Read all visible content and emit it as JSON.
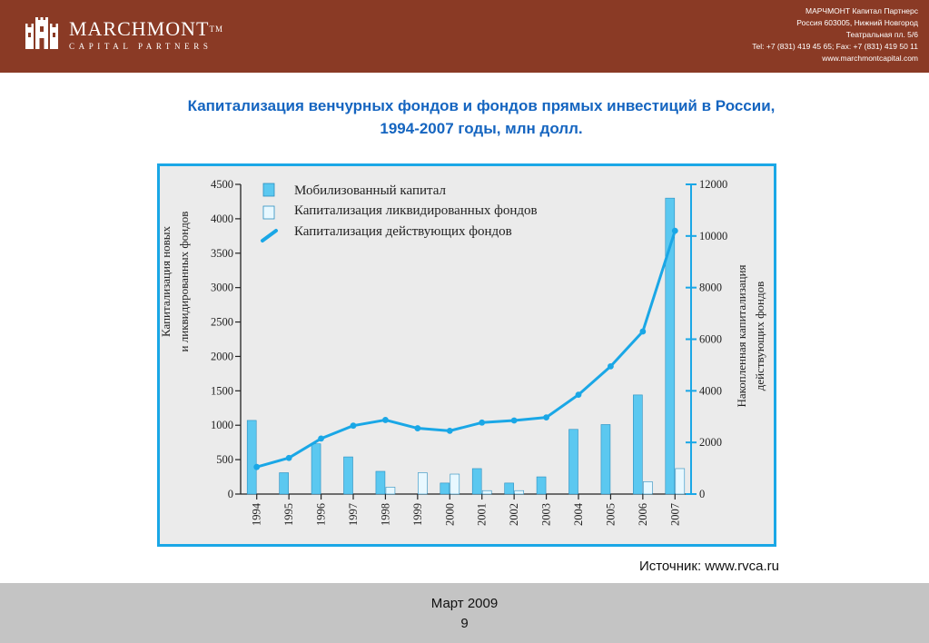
{
  "header": {
    "brand": "MARCHMONT",
    "trademark": "TM",
    "brand_sub": "CAPITAL PARTNERS",
    "contact": [
      "МАРЧМОНТ Капитал Партнерс",
      "Россия 603005, Нижний Новгород",
      "Театральная пл. 5/6",
      "Tel: +7 (831) 419 45 65; Fax: +7 (831) 419 50 11",
      "www.marchmontcapital.com"
    ],
    "colors": {
      "header_bg": "#8a3a25",
      "footer_bg": "#c4c4c4"
    }
  },
  "slide": {
    "title_line1": "Капитализация венчурных фондов и фондов прямых инвестиций в России,",
    "title_line2": "1994-2007 годы, млн долл.",
    "source": "Источник: www.rvca.ru",
    "footer_date": "Март 2009",
    "footer_page": "9"
  },
  "chart_data": {
    "type": "bar",
    "categories": [
      "1994",
      "1995",
      "1996",
      "1997",
      "1998",
      "1999",
      "2000",
      "2001",
      "2002",
      "2003",
      "2004",
      "2005",
      "2006",
      "2007"
    ],
    "series": [
      {
        "name": "Мобилизованный капитал",
        "type": "bar",
        "axis": "left",
        "color": "#5bc8f0",
        "values": [
          1070,
          310,
          730,
          540,
          330,
          0,
          160,
          370,
          160,
          250,
          940,
          1010,
          1440,
          4300
        ]
      },
      {
        "name": "Капитализация ликвидированных фондов",
        "type": "bar",
        "axis": "left",
        "color": "#e8f8ff",
        "values": [
          0,
          0,
          0,
          0,
          100,
          310,
          290,
          50,
          50,
          0,
          0,
          0,
          180,
          370
        ]
      },
      {
        "name": "Капитализация действующих фондов",
        "type": "line",
        "axis": "right",
        "color": "#1aa7e6",
        "values": [
          1050,
          1400,
          2150,
          2650,
          2870,
          2550,
          2450,
          2770,
          2850,
          2970,
          3850,
          4950,
          6300,
          10200
        ]
      }
    ],
    "ylabel": "Капитализация новых и ликвидированных фондов",
    "ylabel_right": "Накопленная капитализация действующих фондов",
    "ylim": [
      0,
      4500
    ],
    "yticks": [
      0,
      500,
      1000,
      1500,
      2000,
      2500,
      3000,
      3500,
      4000,
      4500
    ],
    "ylim_right": [
      0,
      12000
    ],
    "yticks_right": [
      0,
      2000,
      4000,
      6000,
      8000,
      10000,
      12000
    ],
    "grid": false,
    "legend_position": "top-left"
  }
}
